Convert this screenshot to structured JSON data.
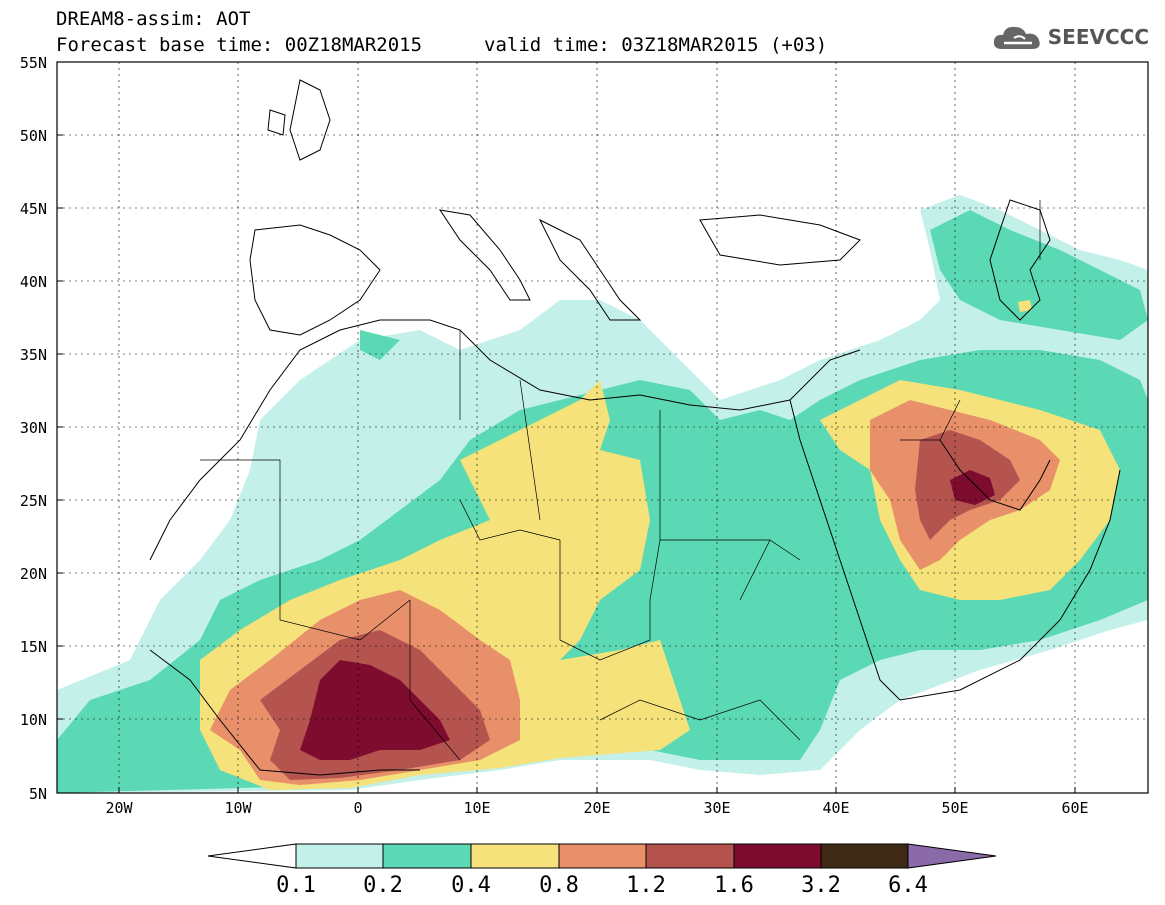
{
  "title": {
    "line1": "DREAM8-assim: AOT",
    "base": "Forecast base time: 00Z18MAR2015",
    "valid": "valid time: 03Z18MAR2015 (+03)"
  },
  "logo": {
    "name": "cloud-icon",
    "text": "SEEVCCC"
  },
  "map": {
    "lat_labels": [
      "55N",
      "50N",
      "45N",
      "40N",
      "35N",
      "30N",
      "25N",
      "20N",
      "15N",
      "10N",
      "5N"
    ],
    "lon_labels": [
      "20W",
      "10W",
      "0",
      "10E",
      "20E",
      "30E",
      "40E",
      "50E",
      "60E"
    ],
    "lon_range": [
      -25,
      65
    ],
    "lat_range": [
      5,
      55
    ],
    "grid": true
  },
  "colorbar": {
    "labels": [
      "0.1",
      "0.2",
      "0.4",
      "0.8",
      "1.2",
      "1.6",
      "3.2",
      "6.4"
    ],
    "colors": [
      "#ffffff",
      "#c4f0ea",
      "#5ad9b4",
      "#f5e27a",
      "#e8906a",
      "#b5544f",
      "#7d0c2e",
      "#3e2a14",
      "#8a6aa8"
    ]
  }
}
